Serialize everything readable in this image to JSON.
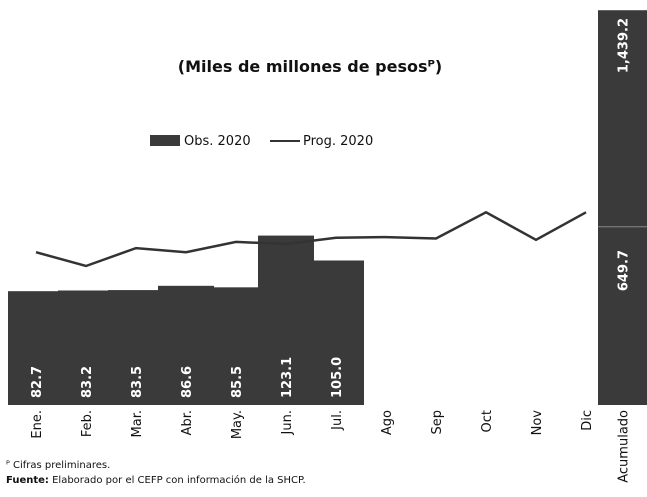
{
  "chart_data": {
    "type": "bar",
    "title": "(Miles de millones de pesosᴾ)",
    "categories": [
      "Ene.",
      "Feb.",
      "Mar.",
      "Abr.",
      "May.",
      "Jun.",
      "Jul.",
      "Ago",
      "Sep",
      "Oct",
      "Nov",
      "Dic"
    ],
    "series": [
      {
        "name": "Obs. 2020",
        "type": "bar",
        "color": "#3a3a3a",
        "values": [
          82.7,
          83.2,
          83.5,
          86.6,
          85.5,
          123.1,
          105.0,
          null,
          null,
          null,
          null,
          null
        ],
        "value_labels": [
          "82.7",
          "83.2",
          "83.5",
          "86.6",
          "85.5",
          "123.1",
          "105.0",
          null,
          null,
          null,
          null,
          null
        ]
      },
      {
        "name": "Prog. 2020",
        "type": "line",
        "color": "#333333",
        "values": [
          111,
          101,
          114,
          111,
          118.5,
          117,
          121.5,
          122,
          121,
          140,
          120,
          140
        ]
      }
    ],
    "ylim": [
      0,
      287
    ],
    "accumulated": {
      "category": "Acumulado",
      "axis": "y2",
      "color": "#3a3a3a",
      "values": [
        1439.2,
        649.7
      ],
      "value_labels": [
        "1,439.2",
        "649.7"
      ]
    },
    "y2lim": [
      0,
      1440
    ],
    "footnote": "ᴾ Cifras preliminares.",
    "source_label": "Fuente:",
    "source_text": "Elaborado por el CEFP con información de la SHCP."
  }
}
